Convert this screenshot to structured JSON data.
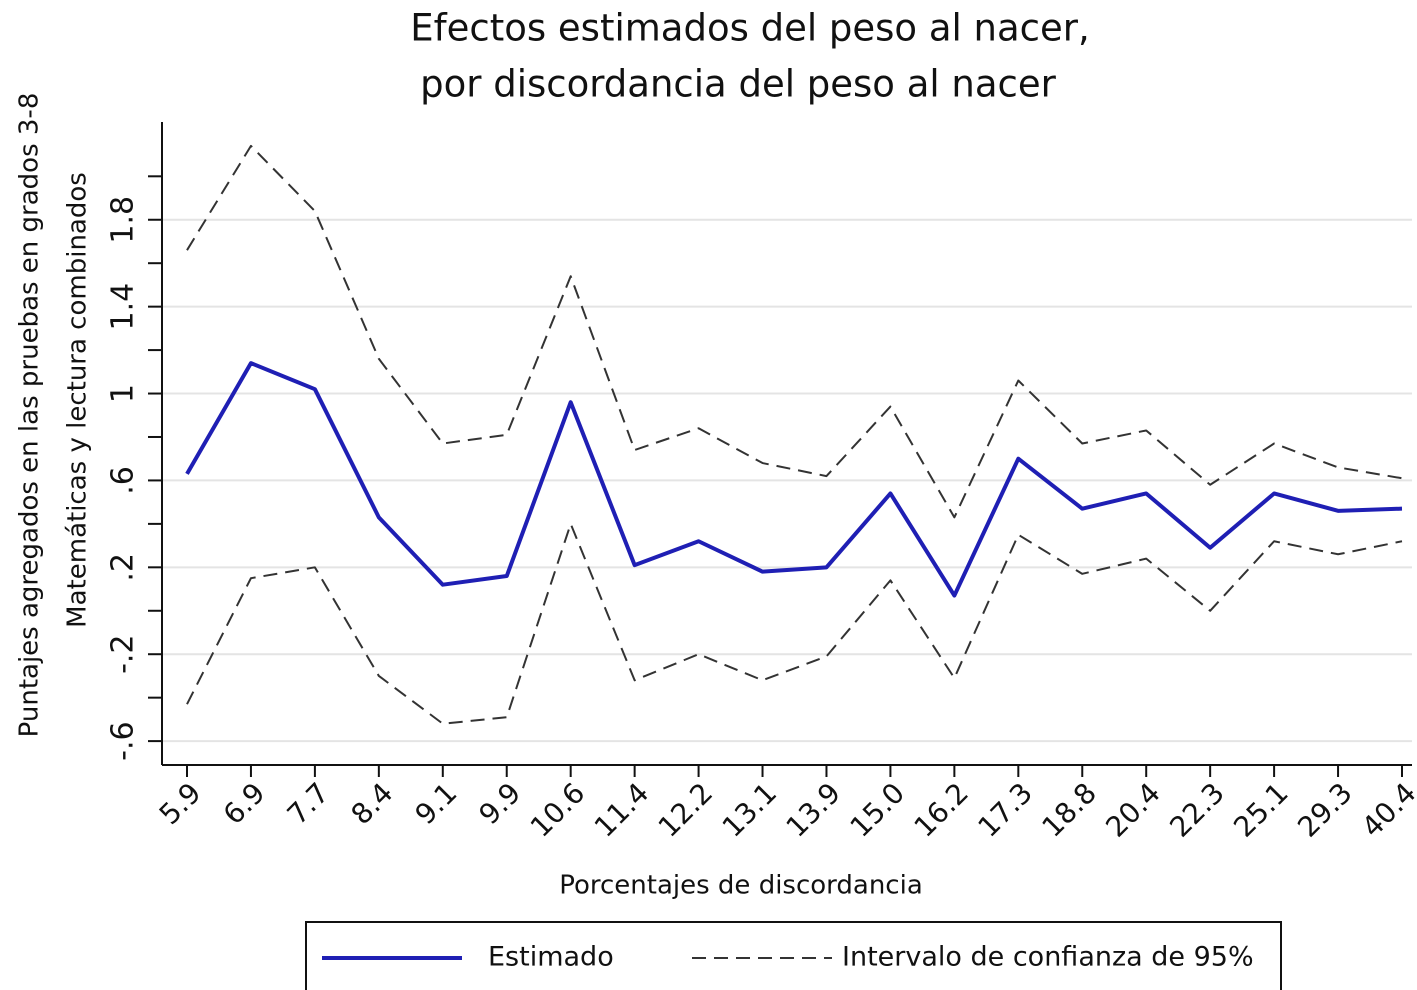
{
  "chart_data": {
    "type": "line",
    "title": [
      "Efectos estimados del peso al nacer,",
      "por discordancia del peso al nacer"
    ],
    "x_label": "Porcentajes de discordancia",
    "y_label": [
      "Puntajes agregados en las pruebas en grados 3-8",
      "Matemáticas y lectura combinados"
    ],
    "categories": [
      "5.9",
      "6.9",
      "7.7",
      "8.4",
      "9.1",
      "9.9",
      "10.6",
      "11.4",
      "12.2",
      "13.1",
      "13.9",
      "15.0",
      "16.2",
      "17.3",
      "18.8",
      "20.4",
      "22.3",
      "25.1",
      "29.3",
      "40.4"
    ],
    "series": [
      {
        "name": "Estimado",
        "color": "#1f1fb4",
        "style": "solid",
        "values": [
          0.63,
          1.14,
          1.02,
          0.43,
          0.12,
          0.16,
          0.96,
          0.21,
          0.32,
          0.18,
          0.2,
          0.54,
          0.07,
          0.7,
          0.47,
          0.54,
          0.29,
          0.54,
          0.46,
          0.47
        ]
      },
      {
        "name": "Intervalo de confianza de 95%",
        "color": "#333333",
        "style": "dashed",
        "upper": [
          1.66,
          2.14,
          1.84,
          1.16,
          0.77,
          0.81,
          1.54,
          0.74,
          0.84,
          0.68,
          0.62,
          0.94,
          0.43,
          1.06,
          0.77,
          0.83,
          0.58,
          0.77,
          0.66,
          0.61
        ],
        "lower": [
          -0.43,
          0.15,
          0.2,
          -0.3,
          -0.52,
          -0.49,
          0.4,
          -0.32,
          -0.2,
          -0.32,
          -0.21,
          0.14,
          -0.31,
          0.35,
          0.17,
          0.24,
          0.0,
          0.32,
          0.26,
          0.32
        ]
      }
    ],
    "ylim": [
      -0.71,
      2.25
    ],
    "yticks": [
      {
        "value": -0.6,
        "label": "-.6"
      },
      {
        "value": -0.2,
        "label": "-.2"
      },
      {
        "value": 0.2,
        "label": ".2"
      },
      {
        "value": 0.6,
        "label": ".6"
      },
      1,
      1.4,
      1.8
    ],
    "minor_yticks": [
      -0.4,
      0,
      0.4,
      0.8,
      1.2,
      1.6,
      2
    ],
    "grid": true,
    "legend": "bottom"
  }
}
